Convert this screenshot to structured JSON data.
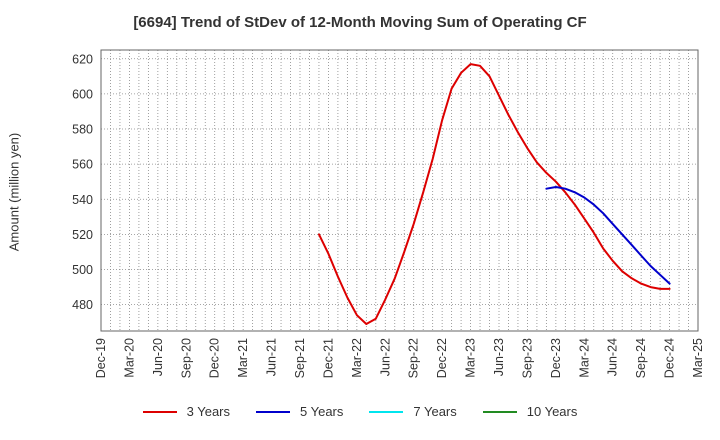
{
  "chart_data": {
    "type": "line",
    "title": "[6694]  Trend of StDev of 12-Month Moving Sum of Operating CF",
    "ylabel": "Amount (million yen)",
    "xlabel": "",
    "ylim": [
      465,
      625
    ],
    "yticks": [
      480,
      500,
      520,
      540,
      560,
      580,
      600,
      620
    ],
    "xlim": [
      "2019-12",
      "2025-03"
    ],
    "xtick_labels": [
      "Dec-19",
      "Mar-20",
      "Jun-20",
      "Sep-20",
      "Dec-20",
      "Mar-21",
      "Jun-21",
      "Sep-21",
      "Dec-21",
      "Mar-22",
      "Jun-22",
      "Sep-22",
      "Dec-22",
      "Mar-23",
      "Jun-23",
      "Sep-23",
      "Dec-23",
      "Mar-24",
      "Jun-24",
      "Sep-24",
      "Dec-24",
      "Mar-25"
    ],
    "grid": true,
    "legend_position": "bottom",
    "series": [
      {
        "name": "3 Years",
        "color": "#dd0000",
        "x": [
          "2021-11",
          "2021-12",
          "2022-01",
          "2022-02",
          "2022-03",
          "2022-04",
          "2022-05",
          "2022-06",
          "2022-07",
          "2022-08",
          "2022-09",
          "2022-10",
          "2022-11",
          "2022-12",
          "2023-01",
          "2023-02",
          "2023-03",
          "2023-04",
          "2023-05",
          "2023-06",
          "2023-07",
          "2023-08",
          "2023-09",
          "2023-10",
          "2023-11",
          "2023-12",
          "2024-01",
          "2024-02",
          "2024-03",
          "2024-04",
          "2024-05",
          "2024-06",
          "2024-07",
          "2024-08",
          "2024-09",
          "2024-10",
          "2024-11",
          "2024-12"
        ],
        "y": [
          520,
          509,
          496,
          484,
          474,
          469,
          472,
          483,
          495,
          510,
          526,
          544,
          563,
          585,
          603,
          612,
          617,
          616,
          610,
          599,
          588,
          578,
          569,
          561,
          555,
          550,
          544,
          537,
          529,
          521,
          512,
          505,
          499,
          495,
          492,
          490,
          489,
          489
        ]
      },
      {
        "name": "5 Years",
        "color": "#0000cc",
        "x": [
          "2023-11",
          "2023-12",
          "2024-01",
          "2024-02",
          "2024-03",
          "2024-04",
          "2024-05",
          "2024-06",
          "2024-07",
          "2024-08",
          "2024-09",
          "2024-10",
          "2024-11",
          "2024-12"
        ],
        "y": [
          546,
          547,
          546,
          544,
          541,
          537,
          532,
          526,
          520,
          514,
          508,
          502,
          497,
          492
        ]
      },
      {
        "name": "7 Years",
        "color": "#00e5ee",
        "x": [],
        "y": []
      },
      {
        "name": "10 Years",
        "color": "#228b22",
        "x": [],
        "y": []
      }
    ]
  }
}
